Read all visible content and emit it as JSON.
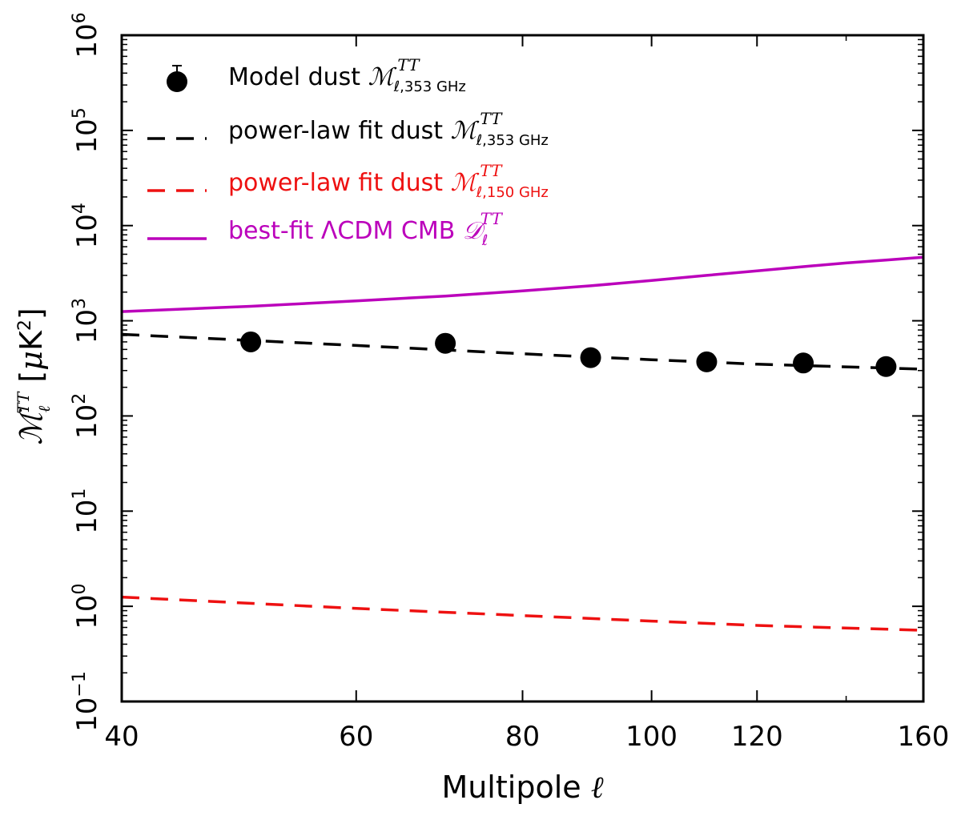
{
  "chart_data": {
    "type": "scatter",
    "xscale": "log",
    "yscale": "log",
    "xlabel": "Multipole ℓ",
    "ylabel": "ℳℓTT [μK²]",
    "xlim": [
      40,
      160
    ],
    "ylim": [
      0.1,
      1000000
    ],
    "xticks": [
      40,
      60,
      80,
      100,
      120,
      160
    ],
    "xtick_labels": [
      "40",
      "60",
      "80",
      "100",
      "120",
      "160"
    ],
    "yticks": [
      0.1,
      1,
      10,
      100,
      1000,
      10000,
      100000,
      1000000
    ],
    "ytick_labels": [
      {
        "base": "10",
        "exp": "−1"
      },
      {
        "base": "10",
        "exp": "0"
      },
      {
        "base": "10",
        "exp": "1"
      },
      {
        "base": "10",
        "exp": "2"
      },
      {
        "base": "10",
        "exp": "3"
      },
      {
        "base": "10",
        "exp": "4"
      },
      {
        "base": "10",
        "exp": "5"
      },
      {
        "base": "10",
        "exp": "6"
      }
    ],
    "grid": false,
    "legend_position": "top-left",
    "series": [
      {
        "name": "Model dust ℳℓ,353 GHzTT",
        "legend": {
          "prefix": "Model dust ",
          "sym": "ℳ",
          "sup": "TT",
          "sub": "ℓ,353 GHz"
        },
        "kind": "points",
        "color": "#000000",
        "x": [
          50,
          70,
          90,
          110,
          130,
          150
        ],
        "y": [
          600,
          580,
          410,
          370,
          360,
          330
        ]
      },
      {
        "name": "power-law fit dust ℳℓ,353 GHzTT",
        "legend": {
          "prefix": "power-law fit dust ",
          "sym": "ℳ",
          "sup": "TT",
          "sub": "ℓ,353 GHz"
        },
        "kind": "dashed",
        "color": "#000000",
        "x": [
          40,
          60,
          80,
          100,
          120,
          160
        ],
        "y": [
          720,
          550,
          450,
          390,
          350,
          310
        ]
      },
      {
        "name": "power-law fit dust ℳℓ,150 GHzTT",
        "legend": {
          "prefix": "power-law fit dust ",
          "sym": "ℳ",
          "sup": "TT",
          "sub": "ℓ,150 GHz"
        },
        "kind": "dashed",
        "color": "#ee1111",
        "x": [
          40,
          60,
          80,
          100,
          120,
          160
        ],
        "y": [
          1.25,
          0.95,
          0.8,
          0.7,
          0.63,
          0.56
        ]
      },
      {
        "name": "best-fit ΛCDM CMB 𝒟ℓTT",
        "legend": {
          "prefix": "best-fit ΛCDM CMB ",
          "sym": "𝒟",
          "sup": "TT",
          "sub": "ℓ"
        },
        "kind": "solid",
        "color": "#bb00bb",
        "x": [
          40,
          50,
          60,
          70,
          80,
          90,
          100,
          110,
          120,
          130,
          140,
          150,
          160
        ],
        "y": [
          1250,
          1420,
          1620,
          1820,
          2060,
          2330,
          2650,
          3000,
          3350,
          3700,
          4050,
          4350,
          4650
        ]
      }
    ]
  }
}
